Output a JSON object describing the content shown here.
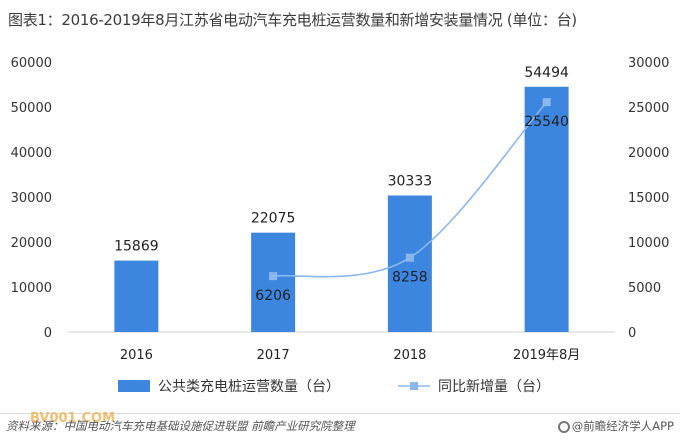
{
  "title": "图表1：2016-2019年8月江苏省电动汽车充电桩运营数量和新增安装量情况 (单位：台)",
  "source": "资料来源：中国电动汽车充电基础设施促进联盟 前瞻产业研究院整理",
  "brand": "@前瞻经济学人APP",
  "site_mark": "BV001.COM",
  "chart_data": {
    "type": "bar",
    "categories": [
      "2016",
      "2017",
      "2018",
      "2019年8月"
    ],
    "series": [
      {
        "name": "公共类充电桩运营数量（台）",
        "type": "bar",
        "axis": "left",
        "values": [
          15869,
          22075,
          30333,
          54494
        ],
        "color": "#3c86e0"
      },
      {
        "name": "同比新增量（台）",
        "type": "line",
        "axis": "right",
        "values": [
          null,
          6206,
          8258,
          25540
        ],
        "color": "#8ab8ee"
      }
    ],
    "y_left": {
      "ticks": [
        0,
        10000,
        20000,
        30000,
        40000,
        50000,
        60000
      ],
      "range": [
        0,
        60000
      ]
    },
    "y_right": {
      "ticks": [
        0,
        5000,
        10000,
        15000,
        20000,
        25000,
        30000
      ],
      "range": [
        0,
        30000
      ]
    },
    "legend_position": "bottom",
    "grid": false
  }
}
